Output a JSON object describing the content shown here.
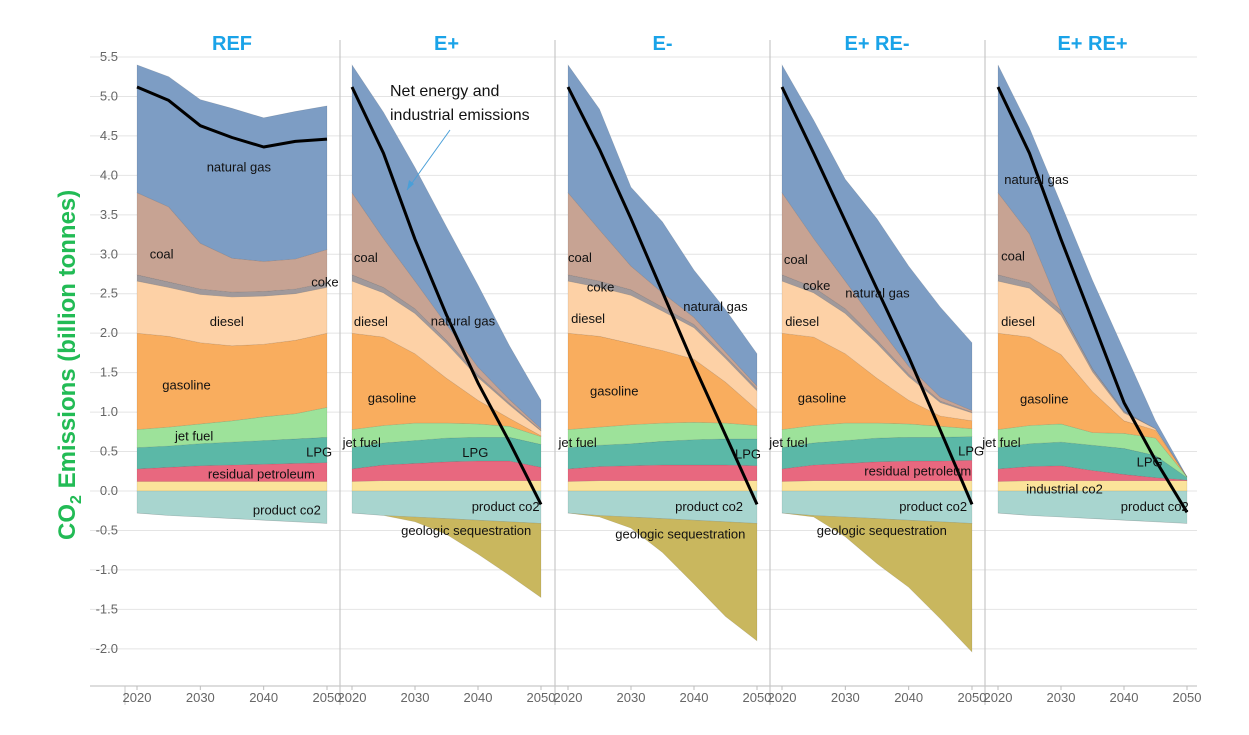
{
  "chart_data": {
    "type": "area",
    "ylabel": "CO2 Emissions (billion tonnes)",
    "ylabel_main": "CO",
    "ylabel_sub": "2",
    "ylabel_rest": " Emissions (billion tonnes)",
    "ylim": [
      -2.3,
      5.6
    ],
    "yticks": [
      5.5,
      5.0,
      4.5,
      4.0,
      3.5,
      3.0,
      2.5,
      2.0,
      1.5,
      1.0,
      0.5,
      0.0,
      -0.5,
      -1.0,
      -1.5,
      -2.0
    ],
    "ytick_labels": [
      "5.5",
      "5.0",
      "4.5",
      "4.0",
      "3.5",
      "3.0",
      "2.5",
      "2.0",
      "1.5",
      "1.0",
      "0.5",
      "0.0",
      "-0.5",
      "-1.0",
      "-1.5",
      "-2.0"
    ],
    "x": [
      2020,
      2025,
      2030,
      2035,
      2040,
      2045,
      2050
    ],
    "xtick_values": [
      2020,
      2030,
      2040,
      2050
    ],
    "xtick_labels": [
      "2020",
      "2030",
      "2040",
      "2050"
    ],
    "title_color": "#1aa3e8",
    "ylabel_color": "#22bb55",
    "series_colors": {
      "product co2": "#a8d5cf",
      "geologic sequestration": "#c9b75e",
      "industrial co2": "#fbe39a",
      "residual petroleum": "#e8687f",
      "LPG": "#5bb8a7",
      "jet fuel": "#9de29a",
      "gasoline": "#f9ad5e",
      "diesel": "#fdd1a6",
      "coke": "#a0999b",
      "coal": "#c7a393",
      "natural gas": "#7d9dc4",
      "net": "#000000"
    },
    "annotation": "Net energy and industrial emissions",
    "annotation_lines": [
      "Net energy and",
      "industrial emissions"
    ],
    "panels": [
      {
        "title": "REF",
        "negative": {
          "product co2": [
            -0.28,
            -0.31,
            -0.33,
            -0.35,
            -0.37,
            -0.39,
            -0.41
          ],
          "geologic sequestration": [
            0,
            0,
            0,
            0,
            0,
            0,
            0
          ]
        },
        "positive": {
          "industrial co2": [
            0.12,
            0.12,
            0.12,
            0.12,
            0.12,
            0.12,
            0.12
          ],
          "residual petroleum": [
            0.16,
            0.18,
            0.2,
            0.21,
            0.22,
            0.23,
            0.24
          ],
          "LPG": [
            0.27,
            0.27,
            0.28,
            0.29,
            0.3,
            0.31,
            0.32
          ],
          "jet fuel": [
            0.23,
            0.24,
            0.25,
            0.27,
            0.3,
            0.32,
            0.38
          ],
          "gasoline": [
            1.22,
            1.15,
            1.03,
            0.95,
            0.92,
            0.93,
            0.94
          ],
          "diesel": [
            0.66,
            0.62,
            0.61,
            0.62,
            0.61,
            0.59,
            0.58
          ],
          "coke": [
            0.08,
            0.07,
            0.07,
            0.06,
            0.06,
            0.06,
            0.06
          ],
          "coal": [
            1.04,
            0.95,
            0.58,
            0.43,
            0.38,
            0.38,
            0.42
          ],
          "natural gas": [
            1.62,
            1.65,
            1.82,
            1.9,
            1.82,
            1.87,
            1.82
          ]
        },
        "net": [
          5.12,
          4.95,
          4.63,
          4.48,
          4.36,
          4.43,
          4.46
        ],
        "labels": [
          {
            "text": "natural gas",
            "x": 2031,
            "y": 4.1
          },
          {
            "text": "coal",
            "x": 2022,
            "y": 3.0
          },
          {
            "text": "coke",
            "x": 2047.5,
            "y": 2.64
          },
          {
            "text": "diesel",
            "x": 2031.5,
            "y": 2.14
          },
          {
            "text": "gasoline",
            "x": 2024,
            "y": 1.34
          },
          {
            "text": "jet fuel",
            "x": 2026,
            "y": 0.69
          },
          {
            "text": "LPG",
            "x": 2046.7,
            "y": 0.49
          },
          {
            "text": "residual petroleum",
            "x": 2031.2,
            "y": 0.21
          },
          {
            "text": "product co2",
            "x": 2038.3,
            "y": -0.25
          }
        ]
      },
      {
        "title": "E+",
        "negative": {
          "product co2": [
            -0.28,
            -0.31,
            -0.33,
            -0.35,
            -0.37,
            -0.39,
            -0.41
          ],
          "geologic sequestration": [
            0,
            0,
            -0.06,
            -0.2,
            -0.43,
            -0.68,
            -0.94
          ]
        },
        "positive": {
          "industrial co2": [
            0.12,
            0.13,
            0.13,
            0.13,
            0.13,
            0.13,
            0.13
          ],
          "residual petroleum": [
            0.16,
            0.2,
            0.22,
            0.24,
            0.25,
            0.25,
            0.17
          ],
          "LPG": [
            0.27,
            0.28,
            0.29,
            0.3,
            0.3,
            0.3,
            0.29
          ],
          "jet fuel": [
            0.23,
            0.22,
            0.22,
            0.19,
            0.17,
            0.14,
            0.1
          ],
          "gasoline": [
            1.22,
            1.12,
            0.88,
            0.57,
            0.3,
            0.1,
            0.01
          ],
          "diesel": [
            0.66,
            0.56,
            0.51,
            0.44,
            0.29,
            0.17,
            0.06
          ],
          "coke": [
            0.08,
            0.07,
            0.06,
            0.04,
            0.03,
            0.02,
            0.01
          ],
          "coal": [
            1.04,
            0.62,
            0.35,
            0.2,
            0.1,
            0.05,
            0.02
          ],
          "natural gas": [
            1.62,
            1.6,
            1.44,
            1.24,
            1.04,
            0.68,
            0.36
          ]
        },
        "net": [
          5.12,
          4.28,
          3.19,
          2.23,
          1.37,
          0.62,
          -0.17
        ],
        "labels": [
          {
            "text": "coal",
            "x": 2020.3,
            "y": 2.95
          },
          {
            "text": "diesel",
            "x": 2020.3,
            "y": 2.14
          },
          {
            "text": "natural gas",
            "x": 2032.5,
            "y": 2.15
          },
          {
            "text": "gasoline",
            "x": 2022.5,
            "y": 1.17
          },
          {
            "text": "jet fuel",
            "x": 2018.5,
            "y": 0.61
          },
          {
            "text": "LPG",
            "x": 2037.5,
            "y": 0.48
          },
          {
            "text": "product co2",
            "x": 2039,
            "y": -0.2
          },
          {
            "text": "geologic sequestration",
            "x": 2027.8,
            "y": -0.51
          }
        ]
      },
      {
        "title": "E-",
        "negative": {
          "product co2": [
            -0.28,
            -0.31,
            -0.33,
            -0.35,
            -0.37,
            -0.39,
            -0.41
          ],
          "geologic sequestration": [
            0,
            -0.02,
            -0.14,
            -0.43,
            -0.81,
            -1.2,
            -1.49
          ]
        },
        "positive": {
          "industrial co2": [
            0.12,
            0.13,
            0.13,
            0.13,
            0.13,
            0.13,
            0.13
          ],
          "residual petroleum": [
            0.16,
            0.18,
            0.19,
            0.2,
            0.2,
            0.2,
            0.19
          ],
          "LPG": [
            0.27,
            0.27,
            0.28,
            0.3,
            0.32,
            0.33,
            0.34
          ],
          "jet fuel": [
            0.23,
            0.23,
            0.24,
            0.23,
            0.22,
            0.2,
            0.17
          ],
          "gasoline": [
            1.22,
            1.15,
            1.03,
            0.92,
            0.8,
            0.52,
            0.2
          ],
          "diesel": [
            0.66,
            0.62,
            0.61,
            0.5,
            0.4,
            0.3,
            0.24
          ],
          "coke": [
            0.08,
            0.08,
            0.07,
            0.05,
            0.04,
            0.03,
            0.03
          ],
          "coal": [
            1.04,
            0.65,
            0.3,
            0.18,
            0.09,
            0.05,
            0.03
          ],
          "natural gas": [
            1.62,
            1.53,
            1.0,
            0.9,
            0.6,
            0.54,
            0.41
          ]
        },
        "net": [
          5.12,
          4.33,
          3.45,
          2.52,
          1.59,
          0.71,
          -0.17
        ],
        "labels": [
          {
            "text": "coal",
            "x": 2020,
            "y": 2.95
          },
          {
            "text": "coke",
            "x": 2023,
            "y": 2.58
          },
          {
            "text": "natural gas",
            "x": 2038.3,
            "y": 2.33
          },
          {
            "text": "diesel",
            "x": 2020.5,
            "y": 2.18
          },
          {
            "text": "gasoline",
            "x": 2023.5,
            "y": 1.26
          },
          {
            "text": "jet fuel",
            "x": 2018.5,
            "y": 0.61
          },
          {
            "text": "LPG",
            "x": 2046.5,
            "y": 0.46
          },
          {
            "text": "product co2",
            "x": 2037,
            "y": -0.2
          },
          {
            "text": "geologic sequestration",
            "x": 2027.5,
            "y": -0.55
          }
        ]
      },
      {
        "title": "E+ RE-",
        "negative": {
          "product co2": [
            -0.28,
            -0.31,
            -0.33,
            -0.35,
            -0.37,
            -0.39,
            -0.41
          ],
          "geologic sequestration": [
            0,
            -0.02,
            -0.25,
            -0.57,
            -0.85,
            -1.23,
            -1.63
          ]
        },
        "positive": {
          "industrial co2": [
            0.12,
            0.13,
            0.13,
            0.13,
            0.13,
            0.13,
            0.13
          ],
          "residual petroleum": [
            0.16,
            0.2,
            0.22,
            0.24,
            0.25,
            0.25,
            0.26
          ],
          "LPG": [
            0.27,
            0.28,
            0.29,
            0.3,
            0.3,
            0.3,
            0.3
          ],
          "jet fuel": [
            0.23,
            0.22,
            0.22,
            0.19,
            0.17,
            0.14,
            0.1
          ],
          "gasoline": [
            1.22,
            1.12,
            0.88,
            0.57,
            0.3,
            0.13,
            0.1
          ],
          "diesel": [
            0.66,
            0.56,
            0.51,
            0.44,
            0.3,
            0.17,
            0.1
          ],
          "coke": [
            0.08,
            0.07,
            0.06,
            0.04,
            0.03,
            0.02,
            0.01
          ],
          "coal": [
            1.04,
            0.62,
            0.35,
            0.2,
            0.1,
            0.05,
            0.02
          ],
          "natural gas": [
            1.62,
            1.5,
            1.29,
            1.34,
            1.27,
            1.14,
            0.86
          ]
        },
        "net": [
          5.12,
          4.28,
          3.42,
          2.56,
          1.7,
          0.77,
          -0.17
        ],
        "labels": [
          {
            "text": "coal",
            "x": 2020.3,
            "y": 2.93
          },
          {
            "text": "coke",
            "x": 2023.3,
            "y": 2.6
          },
          {
            "text": "natural gas",
            "x": 2030,
            "y": 2.5
          },
          {
            "text": "diesel",
            "x": 2020.5,
            "y": 2.14
          },
          {
            "text": "gasoline",
            "x": 2022.5,
            "y": 1.17
          },
          {
            "text": "jet fuel",
            "x": 2018,
            "y": 0.61
          },
          {
            "text": "LPG",
            "x": 2047.8,
            "y": 0.5
          },
          {
            "text": "residual petroleum",
            "x": 2033,
            "y": 0.25
          },
          {
            "text": "product co2",
            "x": 2038.5,
            "y": -0.2
          },
          {
            "text": "geologic sequestration",
            "x": 2025.5,
            "y": -0.51
          }
        ]
      },
      {
        "title": "E+ RE+",
        "negative": {
          "product co2": [
            -0.28,
            -0.31,
            -0.33,
            -0.35,
            -0.37,
            -0.39,
            -0.41
          ],
          "geologic sequestration": [
            0,
            0,
            0,
            0,
            0,
            0,
            0
          ]
        },
        "positive": {
          "industrial co2": [
            0.12,
            0.13,
            0.13,
            0.13,
            0.13,
            0.13,
            0.13
          ],
          "residual petroleum": [
            0.16,
            0.18,
            0.19,
            0.13,
            0.08,
            0.04,
            0.01
          ],
          "LPG": [
            0.27,
            0.29,
            0.3,
            0.32,
            0.33,
            0.28,
            0.03
          ],
          "jet fuel": [
            0.23,
            0.23,
            0.23,
            0.16,
            0.19,
            0.22,
            0.01
          ],
          "gasoline": [
            1.22,
            1.12,
            0.88,
            0.52,
            0.16,
            0.1,
            0.0
          ],
          "diesel": [
            0.66,
            0.62,
            0.5,
            0.25,
            0.1,
            0.02,
            0.0
          ],
          "coke": [
            0.08,
            0.07,
            0.06,
            0.04,
            0.02,
            0.0,
            0.0
          ],
          "coal": [
            1.04,
            0.62,
            0.0,
            0.0,
            0.0,
            0.0,
            0.0
          ],
          "natural gas": [
            1.62,
            1.34,
            1.35,
            1.12,
            0.77,
            0.1,
            0.0
          ]
        },
        "net": [
          5.12,
          4.28,
          3.19,
          2.16,
          1.12,
          0.39,
          -0.27
        ],
        "labels": [
          {
            "text": "natural gas",
            "x": 2021,
            "y": 3.94
          },
          {
            "text": "coal",
            "x": 2020.5,
            "y": 2.97
          },
          {
            "text": "diesel",
            "x": 2020.5,
            "y": 2.14
          },
          {
            "text": "gasoline",
            "x": 2023.5,
            "y": 1.16
          },
          {
            "text": "jet fuel",
            "x": 2017.5,
            "y": 0.61
          },
          {
            "text": "LPG",
            "x": 2042,
            "y": 0.36
          },
          {
            "text": "industrial co2",
            "x": 2024.5,
            "y": 0.02
          },
          {
            "text": "product co2",
            "x": 2039.5,
            "y": -0.2
          }
        ]
      }
    ]
  }
}
